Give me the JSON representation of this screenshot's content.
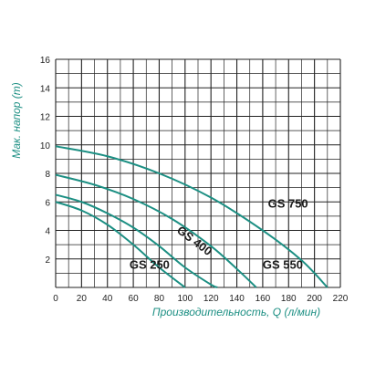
{
  "chart_data": {
    "type": "line",
    "xlabel": "Производительность, Q (л/мин)",
    "ylabel": "Мак. напор (m)",
    "xlim": [
      0,
      220
    ],
    "ylim": [
      0,
      16
    ],
    "xticks": [
      "0",
      "20",
      "40",
      "60",
      "80",
      "100",
      "120",
      "140",
      "160",
      "180",
      "200",
      "220"
    ],
    "yticks": [
      "2",
      "4",
      "6",
      "8",
      "10",
      "12",
      "14",
      "16"
    ],
    "grid": true,
    "colors": {
      "line": "#1c8f83",
      "axis_title": "#1c8f83",
      "grid": "#222222"
    },
    "series": [
      {
        "name": "GS 250",
        "x": [
          0,
          20,
          40,
          60,
          80,
          100
        ],
        "y": [
          6.0,
          5.4,
          4.4,
          3.0,
          1.4,
          0.0
        ]
      },
      {
        "name": "GS 400",
        "x": [
          0,
          20,
          40,
          60,
          80,
          100,
          120,
          125
        ],
        "y": [
          6.5,
          6.0,
          5.2,
          4.2,
          2.9,
          1.4,
          0.2,
          0.0
        ]
      },
      {
        "name": "GS 550",
        "x": [
          0,
          30,
          60,
          90,
          120,
          140,
          155
        ],
        "y": [
          7.9,
          7.2,
          6.2,
          4.8,
          2.9,
          1.3,
          0.0
        ]
      },
      {
        "name": "GS 750",
        "x": [
          0,
          40,
          80,
          120,
          160,
          190,
          210
        ],
        "y": [
          9.9,
          9.2,
          8.0,
          6.3,
          4.0,
          1.9,
          0.0
        ]
      }
    ],
    "curve_labels": [
      {
        "text": "GS 250",
        "x": 57,
        "y": 1.3,
        "angle": 0
      },
      {
        "text": "GS 400",
        "x": 93,
        "y": 3.9,
        "angle": 37
      },
      {
        "text": "GS 550",
        "x": 160,
        "y": 1.3,
        "angle": 0
      },
      {
        "text": "GS 750",
        "x": 164,
        "y": 5.6,
        "angle": 0
      }
    ]
  }
}
